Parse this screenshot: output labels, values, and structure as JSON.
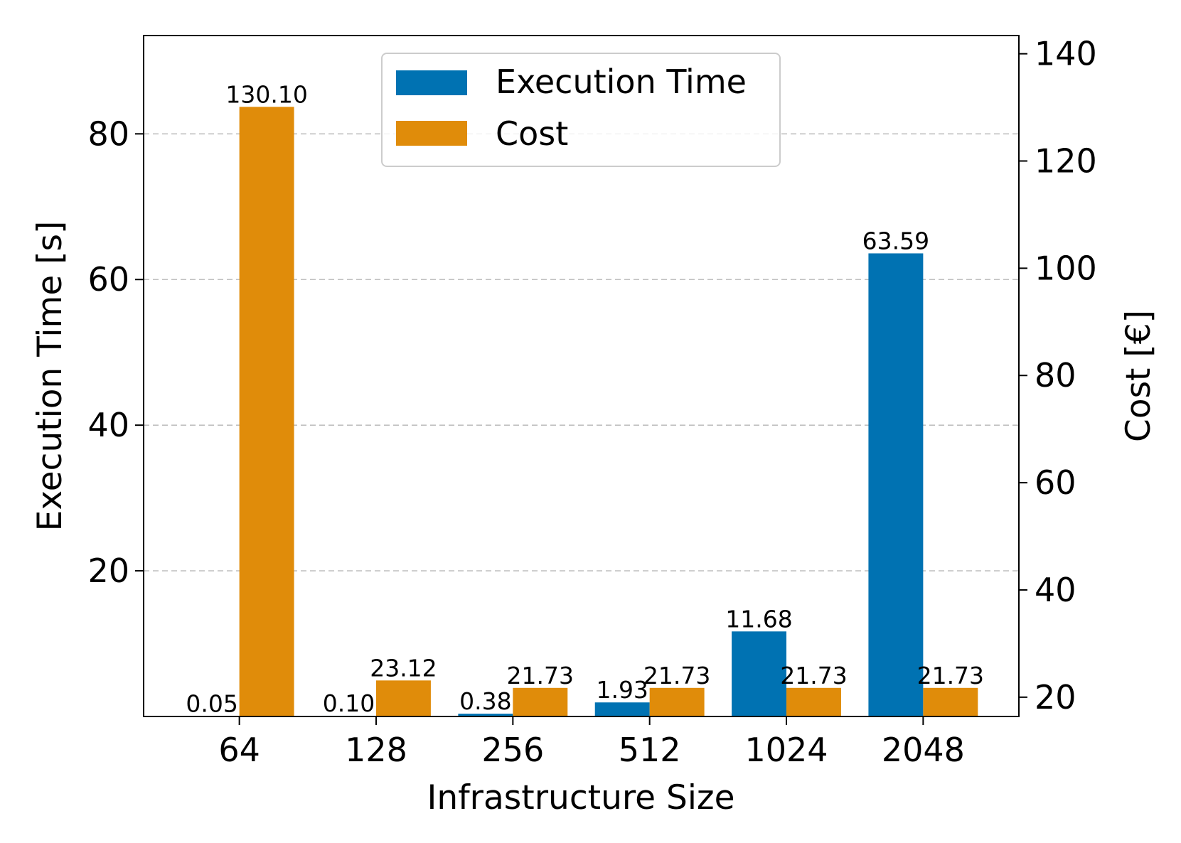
{
  "chart_data": {
    "type": "bar",
    "title": "",
    "xlabel": "Infrastructure Size",
    "ylabel_left": "Execution Time [s]",
    "ylabel_right": "Cost [€]",
    "categories": [
      "64",
      "128",
      "256",
      "512",
      "1024",
      "2048"
    ],
    "ylim_left": [
      0,
      93.5
    ],
    "ylim_right": [
      16.4,
      143.4
    ],
    "yticks_left": [
      20,
      40,
      60,
      80
    ],
    "yticks_right": [
      20,
      40,
      60,
      80,
      100,
      120,
      140
    ],
    "grid": "horizontal dashed (left axis)",
    "legend_position": "top-center",
    "series": [
      {
        "name": "Execution Time",
        "axis": "left",
        "color": "#0072b2",
        "values": [
          0.05,
          0.1,
          0.38,
          1.93,
          11.68,
          63.59
        ],
        "labels": [
          "0.05",
          "0.10",
          "0.38",
          "1.93",
          "11.68",
          "63.59"
        ]
      },
      {
        "name": "Cost",
        "axis": "right",
        "color": "#e08c0a",
        "values": [
          130.1,
          23.12,
          21.73,
          21.73,
          21.73,
          21.73
        ],
        "labels": [
          "130.10",
          "23.12",
          "21.73",
          "21.73",
          "21.73",
          "21.73"
        ]
      }
    ]
  }
}
